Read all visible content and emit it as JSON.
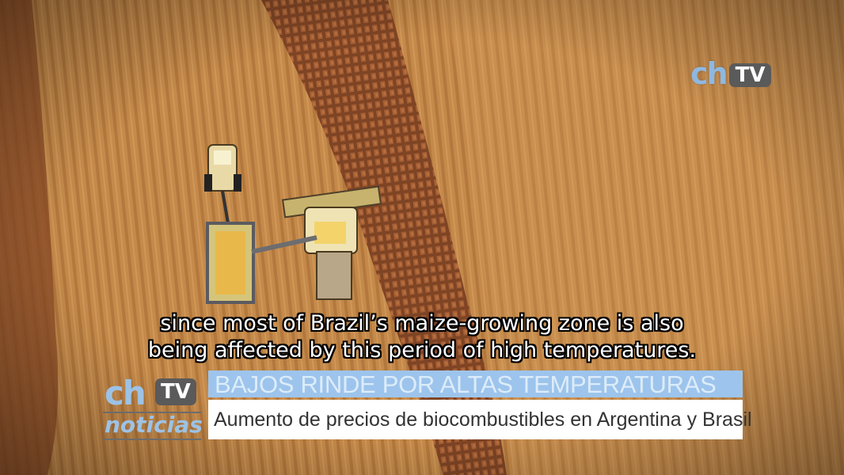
{
  "video": {
    "description_colors": {
      "field": "#b5773a",
      "accent": "#9dc4ec",
      "logo_tv_bg": "#5a5a5a"
    }
  },
  "watermark": {
    "ch": "ch",
    "tv": "TV"
  },
  "subtitle": {
    "line1": "since most of Brazil’s maize-growing zone is also",
    "line2": "being affected by this period of high temperatures."
  },
  "lower_third": {
    "logo": {
      "ch": "ch",
      "tv": "TV",
      "noticias": "noticias"
    },
    "headline": "BAJOS RINDE POR ALTAS TEMPERATURAS",
    "description": "Aumento de precios de biocombustibles en Argentina y Brasil"
  }
}
